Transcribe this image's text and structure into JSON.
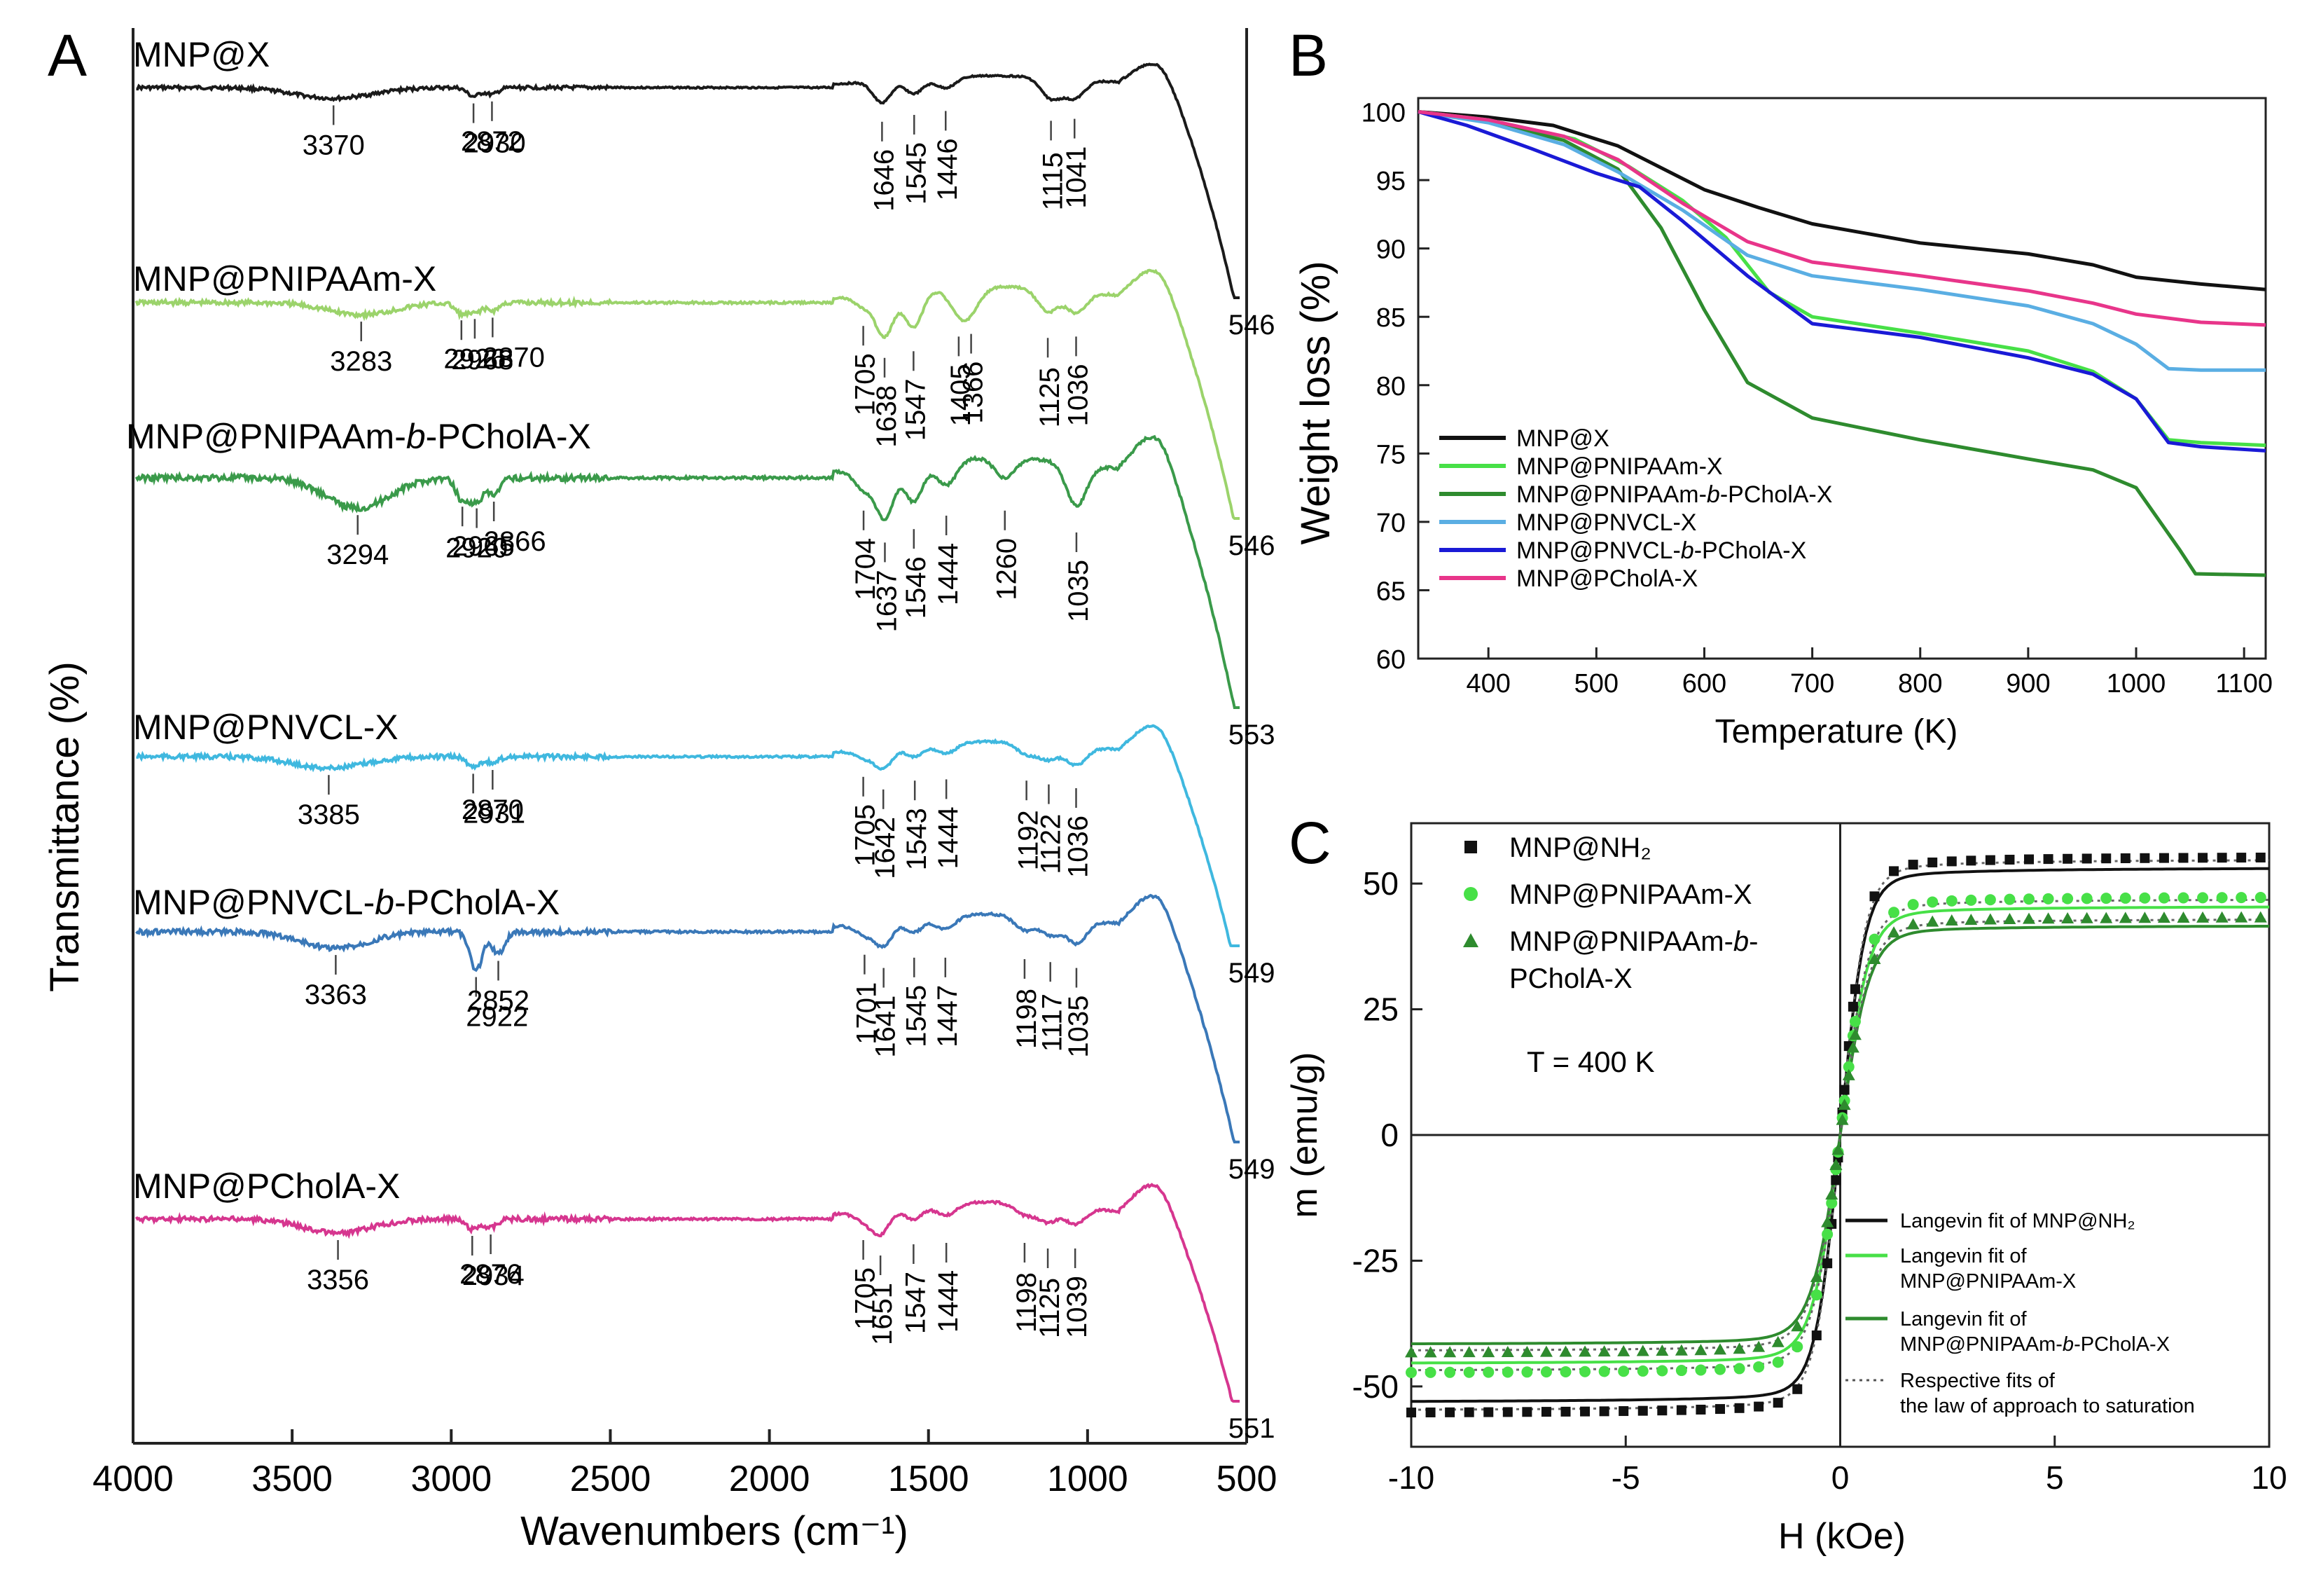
{
  "panels": {
    "A": {
      "letter": "A"
    },
    "B": {
      "letter": "B"
    },
    "C": {
      "letter": "C"
    }
  },
  "chart_data": [
    {
      "panel": "A",
      "type": "line",
      "title": "",
      "xlabel": "Wavenumbers (cm⁻¹)",
      "ylabel": "Transmittance (%)",
      "xlim": [
        4000,
        500
      ],
      "x_ticks": [
        4000,
        3500,
        3000,
        2500,
        2000,
        1500,
        1000,
        500
      ],
      "stacked_offsets": true,
      "series": [
        {
          "name": "MNP@X",
          "color": "#1a1a1a",
          "end_label": "546",
          "peaks": [
            {
              "wn": 3370,
              "label": "3370",
              "depth": 0.55
            },
            {
              "wn": 2930,
              "label": "2930",
              "depth": 0.45
            },
            {
              "wn": 2872,
              "label": "2872",
              "depth": 0.35
            },
            {
              "wn": 1646,
              "label": "1646",
              "depth": 1.1
            },
            {
              "wn": 1545,
              "label": "1545",
              "depth": 0.75
            },
            {
              "wn": 1446,
              "label": "1446",
              "depth": 0.55
            },
            {
              "wn": 1115,
              "label": "1115",
              "depth": 1.05
            },
            {
              "wn": 1041,
              "label": "1041",
              "depth": 0.95
            }
          ]
        },
        {
          "name": "MNP@PNIPAAm-X",
          "color": "#9bd36b",
          "end_label": "546",
          "peaks": [
            {
              "wn": 3283,
              "label": "3283",
              "depth": 0.45
            },
            {
              "wn": 2968,
              "label": "2968",
              "depth": 0.4
            },
            {
              "wn": 2926,
              "label": "2926",
              "depth": 0.35
            },
            {
              "wn": 2870,
              "label": "2870",
              "depth": 0.3
            },
            {
              "wn": 1705,
              "label": "1705",
              "depth": 0.4
            },
            {
              "wn": 1638,
              "label": "1638",
              "depth": 1.6
            },
            {
              "wn": 1547,
              "label": "1547",
              "depth": 1.35
            },
            {
              "wn": 1405,
              "label": "1405",
              "depth": 0.8
            },
            {
              "wn": 1366,
              "label": "1366",
              "depth": 0.7
            },
            {
              "wn": 1125,
              "label": "1125",
              "depth": 0.85
            },
            {
              "wn": 1036,
              "label": "1036",
              "depth": 0.8
            }
          ]
        },
        {
          "name": "MNP@PNIPAAm-b-PCholA-X",
          "color": "#3a9a4a",
          "end_label": "553",
          "peaks": [
            {
              "wn": 3294,
              "label": "3294",
              "depth": 0.9
            },
            {
              "wn": 2965,
              "label": "2965",
              "depth": 0.65
            },
            {
              "wn": 2920,
              "label": "2920",
              "depth": 0.7
            },
            {
              "wn": 2866,
              "label": "2866",
              "depth": 0.5
            },
            {
              "wn": 1704,
              "label": "1704",
              "depth": 0.6
            },
            {
              "wn": 1637,
              "label": "1637",
              "depth": 1.55
            },
            {
              "wn": 1546,
              "label": "1546",
              "depth": 1.15
            },
            {
              "wn": 1444,
              "label": "1444",
              "depth": 0.75
            },
            {
              "wn": 1260,
              "label": "1260",
              "depth": 0.6
            },
            {
              "wn": 1035,
              "label": "1035",
              "depth": 1.25
            }
          ]
        },
        {
          "name": "MNP@PNVCL-X",
          "color": "#3fb8df",
          "end_label": "549",
          "peaks": [
            {
              "wn": 3385,
              "label": "3385",
              "depth": 0.45
            },
            {
              "wn": 2931,
              "label": "2931",
              "depth": 0.4
            },
            {
              "wn": 2870,
              "label": "2870",
              "depth": 0.25
            },
            {
              "wn": 1705,
              "label": "1705",
              "depth": 0.3
            },
            {
              "wn": 1642,
              "label": "1642",
              "depth": 0.8
            },
            {
              "wn": 1543,
              "label": "1543",
              "depth": 0.45
            },
            {
              "wn": 1444,
              "label": "1444",
              "depth": 0.4
            },
            {
              "wn": 1192,
              "label": "1192",
              "depth": 0.45
            },
            {
              "wn": 1122,
              "label": "1122",
              "depth": 0.6
            },
            {
              "wn": 1036,
              "label": "1036",
              "depth": 0.75
            }
          ]
        },
        {
          "name": "MNP@PNVCL-b-PCholA-X",
          "color": "#3a78b8",
          "end_label": "549",
          "peaks": [
            {
              "wn": 3363,
              "label": "3363",
              "depth": 0.55
            },
            {
              "wn": 2922,
              "label": "2922",
              "depth": 1.3
            },
            {
              "wn": 2852,
              "label": "2852",
              "depth": 0.75
            },
            {
              "wn": 1701,
              "label": "1701",
              "depth": 0.35
            },
            {
              "wn": 1641,
              "label": "1641",
              "depth": 0.8
            },
            {
              "wn": 1545,
              "label": "1545",
              "depth": 0.45
            },
            {
              "wn": 1447,
              "label": "1447",
              "depth": 0.45
            },
            {
              "wn": 1198,
              "label": "1198",
              "depth": 0.5
            },
            {
              "wn": 1117,
              "label": "1117",
              "depth": 0.6
            },
            {
              "wn": 1035,
              "label": "1035",
              "depth": 0.8
            }
          ]
        },
        {
          "name": "MNP@PCholA-X",
          "color": "#d6368f",
          "end_label": "551",
          "peaks": [
            {
              "wn": 3356,
              "label": "3356",
              "depth": 0.5
            },
            {
              "wn": 2934,
              "label": "2934",
              "depth": 0.35
            },
            {
              "wn": 2876,
              "label": "2876",
              "depth": 0.3
            },
            {
              "wn": 1705,
              "label": "1705",
              "depth": 0.3
            },
            {
              "wn": 1651,
              "label": "1651",
              "depth": 0.85
            },
            {
              "wn": 1547,
              "label": "1547",
              "depth": 0.45
            },
            {
              "wn": 1444,
              "label": "1444",
              "depth": 0.4
            },
            {
              "wn": 1198,
              "label": "1198",
              "depth": 0.4
            },
            {
              "wn": 1125,
              "label": "1125",
              "depth": 0.6
            },
            {
              "wn": 1039,
              "label": "1039",
              "depth": 0.6
            }
          ]
        }
      ]
    },
    {
      "panel": "B",
      "type": "line",
      "title": "",
      "xlabel": "Temperature (K)",
      "ylabel": "Weight loss (%)",
      "xlim": [
        335,
        1120
      ],
      "ylim": [
        60,
        101
      ],
      "x_ticks": [
        400,
        500,
        600,
        700,
        800,
        900,
        1000,
        1100
      ],
      "y_ticks": [
        60,
        65,
        70,
        75,
        80,
        85,
        90,
        95,
        100
      ],
      "legend": "bottom-left",
      "series": [
        {
          "name": "MNP@X",
          "color": "#111111",
          "points": [
            [
              335,
              100
            ],
            [
              400,
              99.6
            ],
            [
              460,
              99.0
            ],
            [
              520,
              97.5
            ],
            [
              600,
              94.3
            ],
            [
              650,
              93.0
            ],
            [
              700,
              91.8
            ],
            [
              800,
              90.4
            ],
            [
              900,
              89.6
            ],
            [
              960,
              88.8
            ],
            [
              1000,
              87.9
            ],
            [
              1060,
              87.4
            ],
            [
              1120,
              87.0
            ]
          ]
        },
        {
          "name": "MNP@PNIPAAm-X",
          "color": "#47e047",
          "points": [
            [
              335,
              100
            ],
            [
              400,
              99.4
            ],
            [
              480,
              98.0
            ],
            [
              530,
              96.0
            ],
            [
              580,
              93.5
            ],
            [
              620,
              90.8
            ],
            [
              660,
              86.8
            ],
            [
              700,
              85.0
            ],
            [
              800,
              83.8
            ],
            [
              900,
              82.5
            ],
            [
              960,
              81.0
            ],
            [
              1000,
              79.0
            ],
            [
              1030,
              76.0
            ],
            [
              1060,
              75.8
            ],
            [
              1120,
              75.6
            ]
          ]
        },
        {
          "name": "MNP@PNIPAAm-b-PCholA-X",
          "color": "#2e8b2e",
          "points": [
            [
              335,
              100
            ],
            [
              400,
              99.3
            ],
            [
              470,
              97.9
            ],
            [
              520,
              95.8
            ],
            [
              560,
              91.5
            ],
            [
              600,
              85.5
            ],
            [
              640,
              80.2
            ],
            [
              700,
              77.6
            ],
            [
              800,
              76.0
            ],
            [
              900,
              74.6
            ],
            [
              960,
              73.8
            ],
            [
              1000,
              72.5
            ],
            [
              1040,
              68.0
            ],
            [
              1055,
              66.2
            ],
            [
              1120,
              66.1
            ]
          ]
        },
        {
          "name": "MNP@PNVCL-X",
          "color": "#5aaee3",
          "points": [
            [
              335,
              100
            ],
            [
              400,
              99.2
            ],
            [
              470,
              97.6
            ],
            [
              520,
              95.6
            ],
            [
              580,
              92.8
            ],
            [
              640,
              89.5
            ],
            [
              700,
              88.0
            ],
            [
              800,
              87.0
            ],
            [
              900,
              85.8
            ],
            [
              960,
              84.5
            ],
            [
              1000,
              83.0
            ],
            [
              1030,
              81.2
            ],
            [
              1060,
              81.1
            ],
            [
              1120,
              81.1
            ]
          ]
        },
        {
          "name": "MNP@PNVCL-b-PCholA-X",
          "color": "#1a1ad6",
          "points": [
            [
              335,
              100
            ],
            [
              380,
              99.0
            ],
            [
              440,
              97.3
            ],
            [
              500,
              95.5
            ],
            [
              540,
              94.5
            ],
            [
              580,
              92.0
            ],
            [
              640,
              88.0
            ],
            [
              700,
              84.5
            ],
            [
              800,
              83.5
            ],
            [
              900,
              82.0
            ],
            [
              960,
              80.8
            ],
            [
              1000,
              79.0
            ],
            [
              1030,
              75.8
            ],
            [
              1060,
              75.5
            ],
            [
              1120,
              75.2
            ]
          ]
        },
        {
          "name": "MNP@PCholA-X",
          "color": "#e8358a",
          "points": [
            [
              335,
              100
            ],
            [
              400,
              99.4
            ],
            [
              470,
              98.2
            ],
            [
              520,
              96.5
            ],
            [
              580,
              93.3
            ],
            [
              640,
              90.5
            ],
            [
              700,
              89.0
            ],
            [
              800,
              88.0
            ],
            [
              900,
              86.9
            ],
            [
              960,
              86.0
            ],
            [
              1000,
              85.2
            ],
            [
              1060,
              84.6
            ],
            [
              1120,
              84.4
            ]
          ]
        }
      ]
    },
    {
      "panel": "C",
      "type": "scatter",
      "title": "",
      "xlabel": "H (kOe)",
      "ylabel": "m (emu/g)",
      "xlim": [
        -10,
        10
      ],
      "ylim": [
        -62,
        62
      ],
      "x_ticks": [
        -10,
        -5,
        0,
        5,
        10
      ],
      "y_ticks": [
        -50,
        -25,
        0,
        25,
        50
      ],
      "annotation": "T = 400 K",
      "series": [
        {
          "name": "MNP@NH₂",
          "marker": "square",
          "color": "#111111",
          "ms": 55.5,
          "a": 0.55,
          "fit_color": "#111111"
        },
        {
          "name": "MNP@PNIPAAm-X",
          "marker": "circle",
          "color": "#47e047",
          "ms": 47.5,
          "a": 0.62,
          "fit_color": "#47e047"
        },
        {
          "name": "MNP@PNIPAAm-b-PCholA-X",
          "marker": "triangle",
          "color": "#2e8b2e",
          "ms": 43.5,
          "a": 0.65,
          "fit_color": "#2e8b2e"
        }
      ],
      "legend_markers": [
        "MNP@NH₂",
        "MNP@PNIPAAm-X",
        "MNP@PNIPAAm-b-",
        "PCholA-X"
      ],
      "legend_fits": [
        {
          "line1": "Langevin fit of MNP@NH₂",
          "line2": "",
          "style": "solid",
          "color": "#111111"
        },
        {
          "line1": "Langevin fit of",
          "line2": "MNP@PNIPAAm-X",
          "style": "solid",
          "color": "#47e047"
        },
        {
          "line1": "Langevin fit of",
          "line2": "MNP@PNIPAAm-b-PCholA-X",
          "style": "solid",
          "color": "#2e8b2e"
        },
        {
          "line1": "Respective fits of",
          "line2": "the law of approach to saturation",
          "style": "dotted",
          "color": "#555555"
        }
      ]
    }
  ]
}
